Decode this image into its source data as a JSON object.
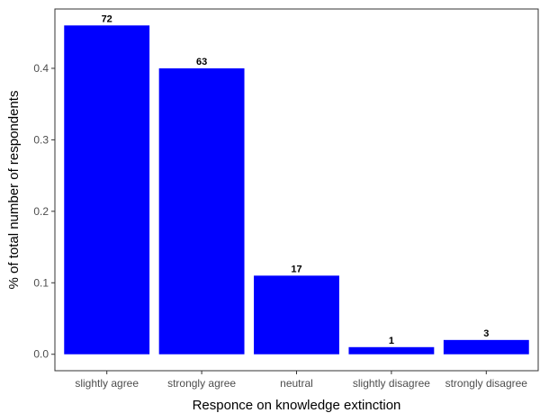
{
  "chart_data": {
    "type": "bar",
    "title": "",
    "xlabel": "Responce on knowledge extinction",
    "ylabel": "% of total number of respondents",
    "categories": [
      "slightly agree",
      "strongly agree",
      "neutral",
      "slightly disagree",
      "strongly disagree"
    ],
    "values": [
      0.46,
      0.4,
      0.11,
      0.01,
      0.02
    ],
    "data_labels": [
      "72",
      "63",
      "17",
      "1",
      "3"
    ],
    "ylim": [
      -0.023,
      0.483
    ],
    "yticks": [
      0.0,
      0.1,
      0.2,
      0.3,
      0.4
    ],
    "ytick_labels": [
      "0.0",
      "0.1",
      "0.2",
      "0.3",
      "0.4"
    ],
    "bar_color": "#0000ff",
    "grid": false,
    "legend": "none"
  }
}
